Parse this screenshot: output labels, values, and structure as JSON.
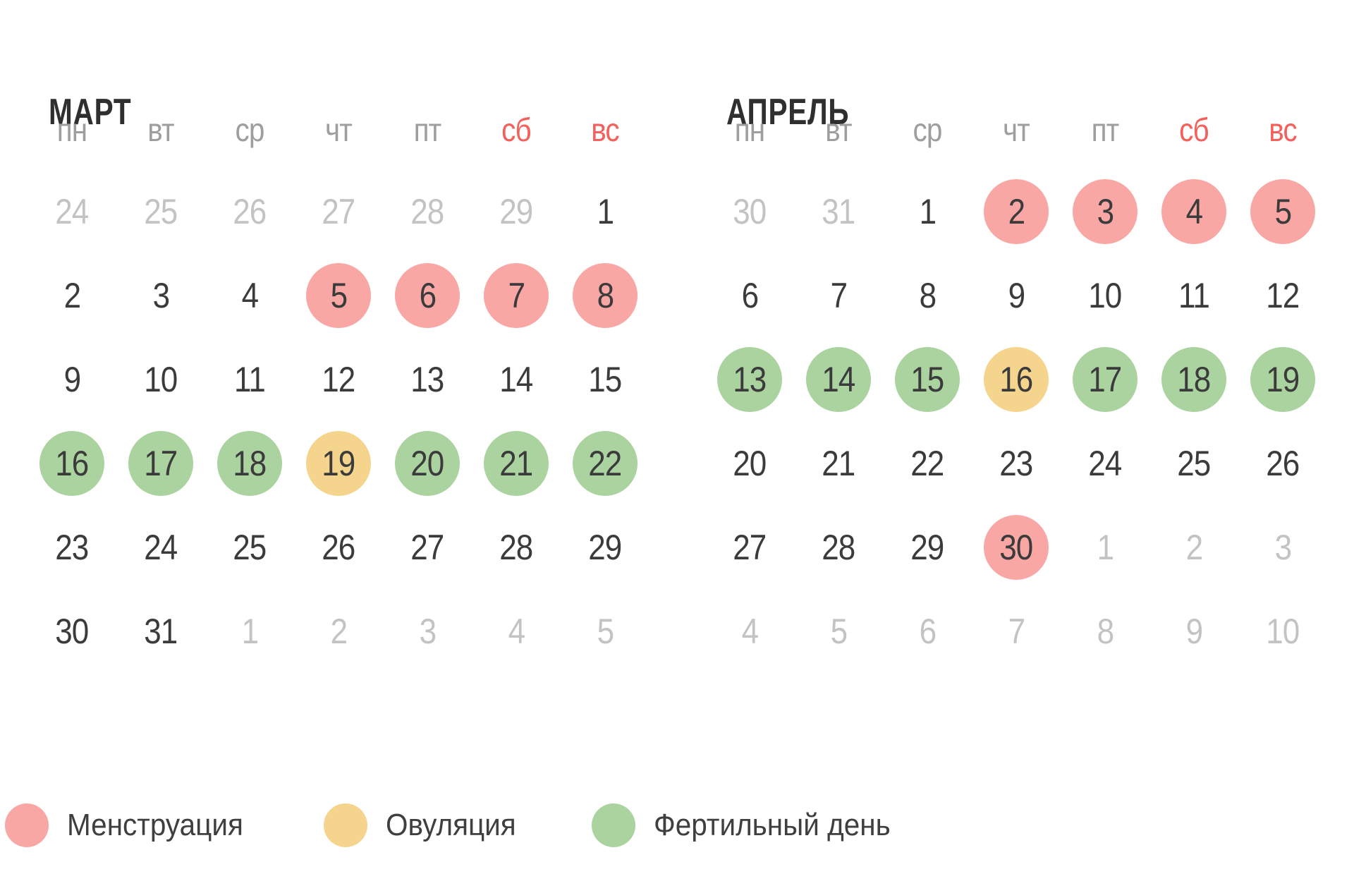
{
  "colors": {
    "menstruation": "#F9A7A5",
    "ovulation": "#F5D48D",
    "fertile": "#ABD3A0",
    "weekend_header": "#F2615C",
    "day_text": "#3B3B3B",
    "muted_text": "#C3C3C3",
    "weekday_text": "#9E9E9E",
    "title_text": "#2F2F2F"
  },
  "months": [
    {
      "name": "МАРТ",
      "weekdays": [
        {
          "label": "пн",
          "weekend": false
        },
        {
          "label": "вт",
          "weekend": false
        },
        {
          "label": "ср",
          "weekend": false
        },
        {
          "label": "чт",
          "weekend": false
        },
        {
          "label": "пт",
          "weekend": false
        },
        {
          "label": "сб",
          "weekend": true
        },
        {
          "label": "вс",
          "weekend": true
        }
      ],
      "weeks": [
        [
          {
            "n": "24",
            "t": "out"
          },
          {
            "n": "25",
            "t": "out"
          },
          {
            "n": "26",
            "t": "out"
          },
          {
            "n": "27",
            "t": "out"
          },
          {
            "n": "28",
            "t": "out"
          },
          {
            "n": "29",
            "t": "out"
          },
          {
            "n": "1",
            "t": "day"
          }
        ],
        [
          {
            "n": "2",
            "t": "day"
          },
          {
            "n": "3",
            "t": "day"
          },
          {
            "n": "4",
            "t": "day"
          },
          {
            "n": "5",
            "t": "men"
          },
          {
            "n": "6",
            "t": "men"
          },
          {
            "n": "7",
            "t": "men"
          },
          {
            "n": "8",
            "t": "men"
          }
        ],
        [
          {
            "n": "9",
            "t": "day"
          },
          {
            "n": "10",
            "t": "day"
          },
          {
            "n": "11",
            "t": "day"
          },
          {
            "n": "12",
            "t": "day"
          },
          {
            "n": "13",
            "t": "day"
          },
          {
            "n": "14",
            "t": "day"
          },
          {
            "n": "15",
            "t": "day"
          }
        ],
        [
          {
            "n": "16",
            "t": "fer"
          },
          {
            "n": "17",
            "t": "fer"
          },
          {
            "n": "18",
            "t": "fer"
          },
          {
            "n": "19",
            "t": "ovu"
          },
          {
            "n": "20",
            "t": "fer"
          },
          {
            "n": "21",
            "t": "fer"
          },
          {
            "n": "22",
            "t": "fer"
          }
        ],
        [
          {
            "n": "23",
            "t": "day"
          },
          {
            "n": "24",
            "t": "day"
          },
          {
            "n": "25",
            "t": "day"
          },
          {
            "n": "26",
            "t": "day"
          },
          {
            "n": "27",
            "t": "day"
          },
          {
            "n": "28",
            "t": "day"
          },
          {
            "n": "29",
            "t": "day"
          }
        ],
        [
          {
            "n": "30",
            "t": "day"
          },
          {
            "n": "31",
            "t": "day"
          },
          {
            "n": "1",
            "t": "out"
          },
          {
            "n": "2",
            "t": "out"
          },
          {
            "n": "3",
            "t": "out"
          },
          {
            "n": "4",
            "t": "out"
          },
          {
            "n": "5",
            "t": "out"
          }
        ]
      ]
    },
    {
      "name": "АПРЕЛЬ",
      "weekdays": [
        {
          "label": "пн",
          "weekend": false
        },
        {
          "label": "вт",
          "weekend": false
        },
        {
          "label": "ср",
          "weekend": false
        },
        {
          "label": "чт",
          "weekend": false
        },
        {
          "label": "пт",
          "weekend": false
        },
        {
          "label": "сб",
          "weekend": true
        },
        {
          "label": "вс",
          "weekend": true
        }
      ],
      "weeks": [
        [
          {
            "n": "30",
            "t": "out"
          },
          {
            "n": "31",
            "t": "out"
          },
          {
            "n": "1",
            "t": "day"
          },
          {
            "n": "2",
            "t": "men"
          },
          {
            "n": "3",
            "t": "men"
          },
          {
            "n": "4",
            "t": "men"
          },
          {
            "n": "5",
            "t": "men"
          }
        ],
        [
          {
            "n": "6",
            "t": "day"
          },
          {
            "n": "7",
            "t": "day"
          },
          {
            "n": "8",
            "t": "day"
          },
          {
            "n": "9",
            "t": "day"
          },
          {
            "n": "10",
            "t": "day"
          },
          {
            "n": "11",
            "t": "day"
          },
          {
            "n": "12",
            "t": "day"
          }
        ],
        [
          {
            "n": "13",
            "t": "fer"
          },
          {
            "n": "14",
            "t": "fer"
          },
          {
            "n": "15",
            "t": "fer"
          },
          {
            "n": "16",
            "t": "ovu"
          },
          {
            "n": "17",
            "t": "fer"
          },
          {
            "n": "18",
            "t": "fer"
          },
          {
            "n": "19",
            "t": "fer"
          }
        ],
        [
          {
            "n": "20",
            "t": "day"
          },
          {
            "n": "21",
            "t": "day"
          },
          {
            "n": "22",
            "t": "day"
          },
          {
            "n": "23",
            "t": "day"
          },
          {
            "n": "24",
            "t": "day"
          },
          {
            "n": "25",
            "t": "day"
          },
          {
            "n": "26",
            "t": "day"
          }
        ],
        [
          {
            "n": "27",
            "t": "day"
          },
          {
            "n": "28",
            "t": "day"
          },
          {
            "n": "29",
            "t": "day"
          },
          {
            "n": "30",
            "t": "men"
          },
          {
            "n": "1",
            "t": "out"
          },
          {
            "n": "2",
            "t": "out"
          },
          {
            "n": "3",
            "t": "out"
          }
        ],
        [
          {
            "n": "4",
            "t": "out"
          },
          {
            "n": "5",
            "t": "out"
          },
          {
            "n": "6",
            "t": "out"
          },
          {
            "n": "7",
            "t": "out"
          },
          {
            "n": "8",
            "t": "out"
          },
          {
            "n": "9",
            "t": "out"
          },
          {
            "n": "10",
            "t": "out"
          }
        ]
      ]
    }
  ],
  "legend": [
    {
      "type": "men",
      "label": "Менструация"
    },
    {
      "type": "ovu",
      "label": "Овуляция"
    },
    {
      "type": "fer",
      "label": "Фертильный день"
    }
  ]
}
